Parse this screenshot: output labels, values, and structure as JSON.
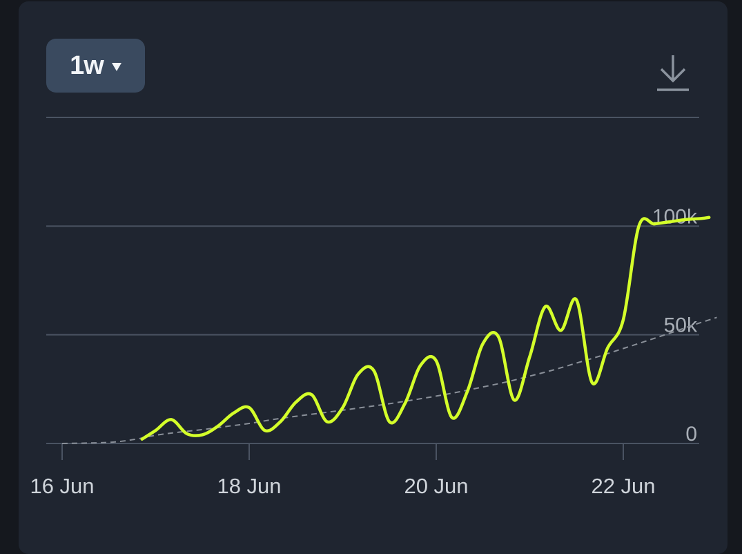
{
  "toolbar": {
    "range_label": "1w",
    "download_icon": "download-icon",
    "dropdown_icon": "caret-down-icon"
  },
  "colors": {
    "series": "#d4ff2a",
    "trend": "#8a9099",
    "grid": "#4a5362",
    "axis_text": "#cfd4da",
    "tick_text": "#a9afb7"
  },
  "chart_data": {
    "type": "line",
    "x_ticks": [
      "16 Jun",
      "18 Jun",
      "20 Jun",
      "22 Jun"
    ],
    "y_ticks": [
      "0",
      "50k",
      "100k"
    ],
    "ylim": [
      0,
      150000
    ],
    "grid": "horizontal",
    "series": [
      {
        "x": [
          "2024-06-16T00:00",
          "2024-06-16T12:00",
          "2024-06-16T19:00",
          "2024-06-17T00:00",
          "2024-06-17T06:00",
          "2024-06-17T12:00",
          "2024-06-17T18:00",
          "2024-06-18T00:00",
          "2024-06-18T06:00",
          "2024-06-18T12:00",
          "2024-06-18T18:00",
          "2024-06-19T00:00",
          "2024-06-19T06:00",
          "2024-06-19T12:00",
          "2024-06-19T18:00",
          "2024-06-20T00:00",
          "2024-06-20T06:00",
          "2024-06-20T12:00",
          "2024-06-20T18:00",
          "2024-06-21T00:00",
          "2024-06-21T06:00",
          "2024-06-21T12:00",
          "2024-06-21T18:00",
          "2024-06-22T00:00",
          "2024-06-22T06:00",
          "2024-06-22T12:00",
          "2024-06-22T18:00",
          "2024-06-23T00:00"
        ],
        "values": [
          0,
          500,
          2000,
          3800,
          5200,
          6400,
          7800,
          9200,
          11000,
          12500,
          13900,
          15300,
          16800,
          18300,
          20000,
          21800,
          23800,
          26000,
          28300,
          31000,
          33800,
          37000,
          40200,
          43700,
          47200,
          50800,
          54500,
          58000
        ],
        "style": "dashed"
      },
      {
        "x": [
          "2024-06-16T20:30",
          "2024-06-17T00:00",
          "2024-06-17T04:00",
          "2024-06-17T08:00",
          "2024-06-17T12:00",
          "2024-06-17T16:00",
          "2024-06-17T20:00",
          "2024-06-18T00:00",
          "2024-06-18T04:00",
          "2024-06-18T08:00",
          "2024-06-18T12:00",
          "2024-06-18T16:00",
          "2024-06-18T20:00",
          "2024-06-19T00:00",
          "2024-06-19T04:00",
          "2024-06-19T08:00",
          "2024-06-19T12:00",
          "2024-06-19T16:00",
          "2024-06-19T20:00",
          "2024-06-20T00:00",
          "2024-06-20T04:00",
          "2024-06-20T08:00",
          "2024-06-20T12:00",
          "2024-06-20T16:00",
          "2024-06-20T20:00",
          "2024-06-21T00:00",
          "2024-06-21T04:00",
          "2024-06-21T08:00",
          "2024-06-21T12:00",
          "2024-06-21T16:00",
          "2024-06-21T20:00",
          "2024-06-22T00:00",
          "2024-06-22T04:00",
          "2024-06-22T08:00",
          "2024-06-22T12:00",
          "2024-06-22T16:00",
          "2024-06-22T20:00",
          "2024-06-22T22:00"
        ],
        "values": [
          2000,
          6000,
          11000,
          4500,
          4000,
          8000,
          14000,
          16500,
          6000,
          10000,
          19000,
          22500,
          10000,
          16500,
          32000,
          33500,
          10000,
          18500,
          36000,
          38000,
          12000,
          24000,
          46000,
          49000,
          20000,
          40000,
          63000,
          52000,
          66000,
          28000,
          44000,
          57000,
          100000,
          101000,
          102000,
          103000,
          103500,
          104000
        ],
        "style": "solid"
      }
    ]
  }
}
